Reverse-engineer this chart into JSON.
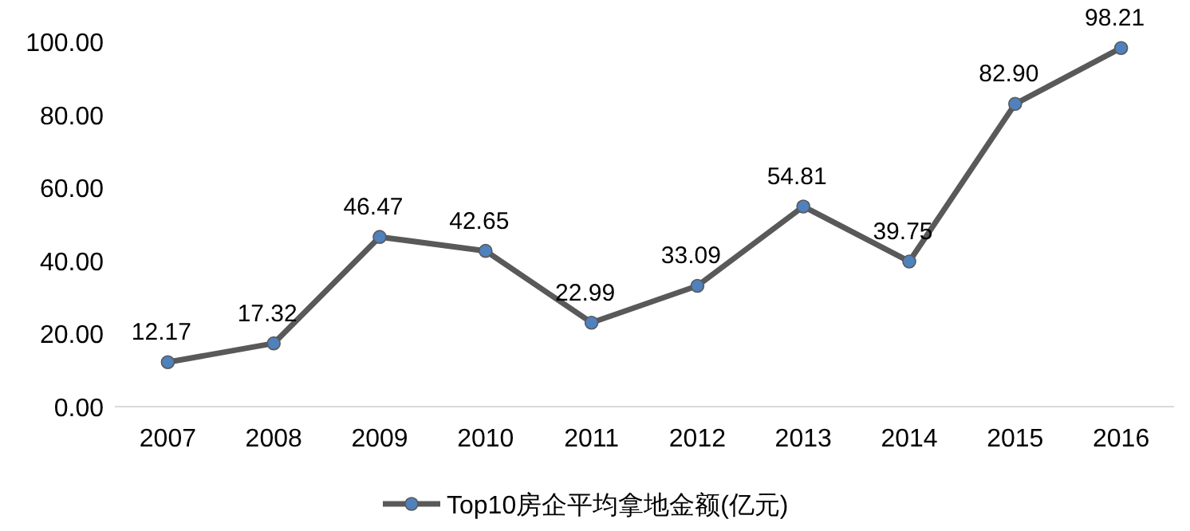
{
  "chart_data": {
    "type": "line",
    "categories": [
      "2007",
      "2008",
      "2009",
      "2010",
      "2011",
      "2012",
      "2013",
      "2014",
      "2015",
      "2016"
    ],
    "series": [
      {
        "name": "Top10房企平均拿地金额(亿元)",
        "color": "#595959",
        "values": [
          12.17,
          17.32,
          46.47,
          42.65,
          22.99,
          33.09,
          54.81,
          39.75,
          82.9,
          98.21
        ],
        "value_labels": [
          "12.17",
          "17.32",
          "46.47",
          "42.65",
          "22.99",
          "33.09",
          "54.81",
          "39.75",
          "82.90",
          "98.21"
        ]
      }
    ],
    "marker": "circle",
    "line_style": "solid",
    "legend": "bottom",
    "grid": false,
    "ylim": [
      0,
      100
    ],
    "yticks": [
      {
        "value": 0,
        "label": "0.00"
      },
      {
        "value": 20,
        "label": "20.00"
      },
      {
        "value": 40,
        "label": "40.00"
      },
      {
        "value": 60,
        "label": "60.00"
      },
      {
        "value": 80,
        "label": "80.00"
      },
      {
        "value": 100,
        "label": "100.00"
      }
    ]
  }
}
